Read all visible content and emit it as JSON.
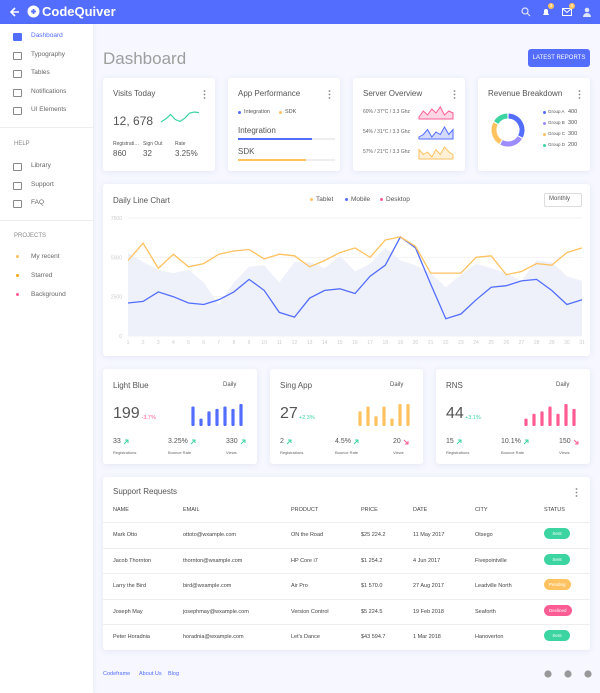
{
  "topbar": {
    "logo": "CodeQuiver",
    "badges": [
      "3",
      "4"
    ]
  },
  "sidebar": {
    "items": [
      "Dashboard",
      "Typography",
      "Tables",
      "Notifications",
      "UI Elements"
    ],
    "help_title": "HELP",
    "help_items": [
      "Library",
      "Support",
      "FAQ"
    ],
    "projects_title": "PROJECTS",
    "projects": [
      {
        "label": "My recent",
        "color": "#ffc260"
      },
      {
        "label": "Starred",
        "color": "#f3a712"
      },
      {
        "label": "Background",
        "color": "#ff5c93"
      }
    ]
  },
  "header": {
    "title": "Dashboard",
    "button": "LATEST REPORTS"
  },
  "visits": {
    "title": "Visits Today",
    "total": "12, 678",
    "stats": [
      {
        "label": "Registrations",
        "value": "860"
      },
      {
        "label": "Sign Out",
        "value": "32"
      },
      {
        "label": "Rate",
        "value": "3.25%"
      }
    ]
  },
  "app_performance": {
    "title": "App Performance",
    "legend": [
      {
        "label": "Integration",
        "color": "#536dfe"
      },
      {
        "label": "SDK",
        "color": "#ffc260"
      }
    ],
    "bars": [
      {
        "label": "Integration",
        "value": 76,
        "color": "#536dfe"
      },
      {
        "label": "SDK",
        "value": 70,
        "color": "#ffc260"
      }
    ]
  },
  "server": {
    "title": "Server Overview",
    "rows": [
      "60% / 37°C / 3.3 Ghz",
      "54% / 31°C / 3.3 Ghz",
      "57% / 21°C / 3.3 Ghz"
    ]
  },
  "revenue": {
    "title": "Revenue Breakdown"
  },
  "line_card": {
    "period": "Monthly"
  },
  "apps": [
    {
      "name": "Light Blue",
      "total": "199",
      "change": "-3.7%",
      "change_color": "#ff5c93",
      "period": "Daily",
      "stats": [
        {
          "value": "33",
          "label": "Registrations",
          "trend": "up"
        },
        {
          "value": "3.25%",
          "label": "Bounce Rate",
          "trend": "up"
        },
        {
          "value": "330",
          "label": "Views",
          "trend": "up"
        }
      ]
    },
    {
      "name": "Sing App",
      "total": "27",
      "change": "+2.3%",
      "change_color": "#3cd4a0",
      "period": "Daily",
      "stats": [
        {
          "value": "2",
          "label": "Registrations",
          "trend": "up"
        },
        {
          "value": "4.5%",
          "label": "Bounce Rate",
          "trend": "up"
        },
        {
          "value": "20",
          "label": "Views",
          "trend": "down"
        }
      ]
    },
    {
      "name": "RNS",
      "total": "44",
      "change": "+3.1%",
      "change_color": "#3cd4a0",
      "period": "Daily",
      "stats": [
        {
          "value": "15",
          "label": "Registrations",
          "trend": "up"
        },
        {
          "value": "10.1%",
          "label": "Bounce Rate",
          "trend": "up"
        },
        {
          "value": "150",
          "label": "Views",
          "trend": "down"
        }
      ]
    }
  ],
  "support": {
    "title": "Support Requests",
    "columns": [
      "NAME",
      "EMAIL",
      "PRODUCT",
      "PRICE",
      "DATE",
      "CITY",
      "STATUS"
    ],
    "rows": [
      [
        "Mark Otto",
        "ottoto@wxample.com",
        "ON the Road",
        "$25 224.2",
        "11 May 2017",
        "Otsego",
        "Sent"
      ],
      [
        "Jacob Thornton",
        "thornton@wxample.com",
        "HP Core i7",
        "$1 254.2",
        "4 Jun 2017",
        "Fivepointville",
        "Sent"
      ],
      [
        "Larry the Bird",
        "bird@wxample.com",
        "Air Pro",
        "$1 570.0",
        "27 Aug 2017",
        "Leadville North",
        "Pending"
      ],
      [
        "Joseph May",
        "josephmay@wxample.com",
        "Version Control",
        "$5 224.5",
        "19 Feb 2018",
        "Seaforth",
        "Declined"
      ],
      [
        "Peter Horadnia",
        "horadnia@wxample.com",
        "Let's Dance",
        "$43 594.7",
        "1 Mar 2018",
        "Hanoverton",
        "Sent"
      ]
    ],
    "status_colors": [
      "#3cd4a0",
      "#3cd4a0",
      "#ffc260",
      "#ff5c93",
      "#3cd4a0"
    ]
  },
  "footer": {
    "links": [
      "Codeframe",
      "About Us",
      "Blog"
    ]
  },
  "chart_data": [
    {
      "type": "line",
      "title": "Daily Line Chart",
      "x": [
        1,
        2,
        3,
        4,
        5,
        6,
        7,
        8,
        9,
        10,
        11,
        12,
        13,
        14,
        15,
        16,
        17,
        18,
        19,
        20,
        21,
        22,
        23,
        24,
        25,
        26,
        27,
        28,
        29,
        30,
        31
      ],
      "xlim": [
        1,
        31
      ],
      "xticks": [
        1,
        2,
        3,
        4,
        5,
        6,
        7,
        8,
        9,
        10,
        11,
        12,
        13,
        14,
        15,
        16,
        17,
        18,
        19,
        20,
        21,
        22,
        23,
        24,
        25,
        26,
        27,
        28,
        29,
        30,
        31
      ],
      "ylim": [
        0,
        7500
      ],
      "yticks": [
        0,
        2500,
        5000,
        7500
      ],
      "series": [
        {
          "name": "Tablet",
          "color": "#ffc260",
          "values": [
            4800,
            5900,
            4300,
            5200,
            4400,
            4600,
            5200,
            5400,
            5500,
            4900,
            5200,
            5100,
            4400,
            4800,
            5300,
            5600,
            5000,
            6100,
            6300,
            5700,
            4000,
            4000,
            4000,
            5000,
            5100,
            3900,
            4100,
            4600,
            4500,
            5300,
            5600
          ]
        },
        {
          "name": "Mobile",
          "color": "#536dfe",
          "values": [
            2100,
            2200,
            2800,
            2500,
            2100,
            2000,
            2300,
            2800,
            3600,
            2900,
            1500,
            1200,
            2400,
            2900,
            3000,
            2700,
            3800,
            4500,
            6300,
            5600,
            3300,
            1100,
            1400,
            2300,
            3100,
            3200,
            3500,
            3600,
            2900,
            2000,
            2300
          ]
        },
        {
          "name": "Desktop",
          "color": "#ff5c93",
          "fill": "#eef0fa",
          "values": [
            5300,
            4700,
            4200,
            4000,
            4200,
            3400,
            2000,
            3400,
            4400,
            4500,
            3400,
            4700,
            4700,
            4300,
            5100,
            4100,
            4600,
            5600,
            4800,
            4500,
            4000,
            3100,
            3900,
            4600,
            4300,
            4000,
            3500,
            4800,
            4700,
            3800,
            3500
          ]
        }
      ]
    },
    {
      "type": "pie",
      "categories": [
        "Group A",
        "Group B",
        "Group C",
        "Group D"
      ],
      "values": [
        400,
        300,
        300,
        200
      ],
      "colors": [
        "#536dfe",
        "#9b8cff",
        "#ffc260",
        "#3cd4a0"
      ]
    },
    {
      "type": "line",
      "color": "#3cd4a0",
      "values": [
        3,
        3.5,
        4.2,
        3.4,
        3.1,
        3.6,
        4.4,
        4.6,
        4.5
      ]
    },
    {
      "type": "area",
      "color": "#ff5c93",
      "values": [
        3,
        6,
        4,
        7,
        5,
        8,
        4,
        6,
        5
      ]
    },
    {
      "type": "area",
      "color": "#536dfe",
      "values": [
        4,
        5,
        7,
        4,
        6,
        5,
        8,
        5,
        7
      ]
    },
    {
      "type": "area",
      "color": "#ffc260",
      "values": [
        6,
        4,
        5,
        3,
        6,
        4,
        7,
        5,
        4
      ]
    },
    {
      "type": "bar",
      "color": "#536dfe",
      "values": [
        8,
        3,
        6,
        7,
        8,
        7,
        9
      ]
    },
    {
      "type": "bar",
      "color": "#ffc260",
      "values": [
        6,
        8,
        4,
        8,
        3,
        9,
        9
      ]
    },
    {
      "type": "bar",
      "color": "#ff5c93",
      "values": [
        3,
        5,
        6,
        8,
        5,
        9,
        7
      ]
    }
  ]
}
